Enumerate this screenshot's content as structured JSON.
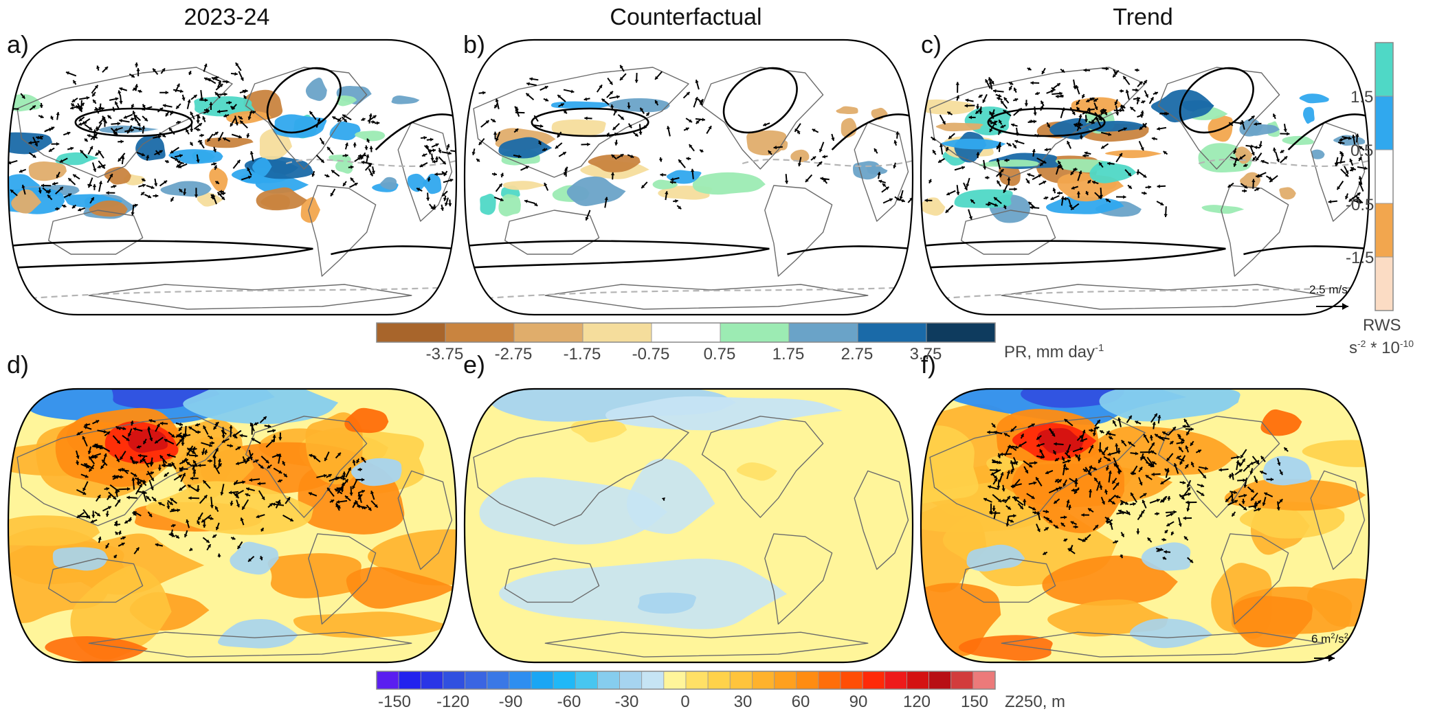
{
  "column_titles": [
    "2023-24",
    "Counterfactual",
    "Trend"
  ],
  "panel_labels": [
    "a)",
    "b)",
    "c)",
    "d)",
    "e)",
    "f)"
  ],
  "pr_colorbar": {
    "colors": [
      "#a8652b",
      "#c9843f",
      "#e0ad6b",
      "#f5dd9c",
      "#ffffff",
      "#9cebb3",
      "#6aa3c8",
      "#1a6aa8",
      "#0e3b5e"
    ],
    "tick_labels": [
      "-3.75",
      "-2.75",
      "-1.75",
      "-0.75",
      "0.75",
      "1.75",
      "2.75",
      "3.75"
    ],
    "unit_text": "PR, mm day",
    "unit_superscript": "-1"
  },
  "rws_colorbar": {
    "colors": [
      "#4fd8c6",
      "#30a8ee",
      "#ffffff",
      "#f2a64e",
      "#fbdcc4"
    ],
    "tick_labels": [
      "1.5",
      "0.5",
      "-0.5",
      "-1.5"
    ],
    "title": "RWS",
    "unit_base": "s",
    "unit_exp1": "-2",
    "unit_mid": " * 10",
    "unit_exp2": "-10"
  },
  "z_colorbar": {
    "colors": [
      "#5a1ef0",
      "#2222ee",
      "#2a35e6",
      "#3050e0",
      "#3a65e2",
      "#3a78e6",
      "#2e8ef0",
      "#1aa6f4",
      "#20b8f7",
      "#48c6f0",
      "#86cdee",
      "#a6d4f0",
      "#c6e4f4",
      "#fff59a",
      "#ffe066",
      "#ffd24a",
      "#ffc43c",
      "#ffb22c",
      "#ffa01e",
      "#ff8c12",
      "#ff6e0a",
      "#ff4e06",
      "#ff2a08",
      "#ee1a1a",
      "#d41212",
      "#b80f14",
      "#d23c3c",
      "#ec7a7a"
    ],
    "tick_labels": [
      "-150",
      "-120",
      "-90",
      "-60",
      "-30",
      "0",
      "30",
      "60",
      "90",
      "120",
      "150"
    ],
    "unit_text": "Z250, m"
  },
  "reference_vectors": {
    "top": {
      "text": "2.5 m/s"
    },
    "bottom": {
      "prefix": "6 m",
      "exp1": "2",
      "mid": "/s",
      "exp2": "2"
    }
  },
  "map_colors": {
    "pr_land_outline": "#6b6b6b",
    "jet_contour": "#000000",
    "dashed_contour": "#b4b4b4",
    "z_base_fill": "#fff59a"
  }
}
